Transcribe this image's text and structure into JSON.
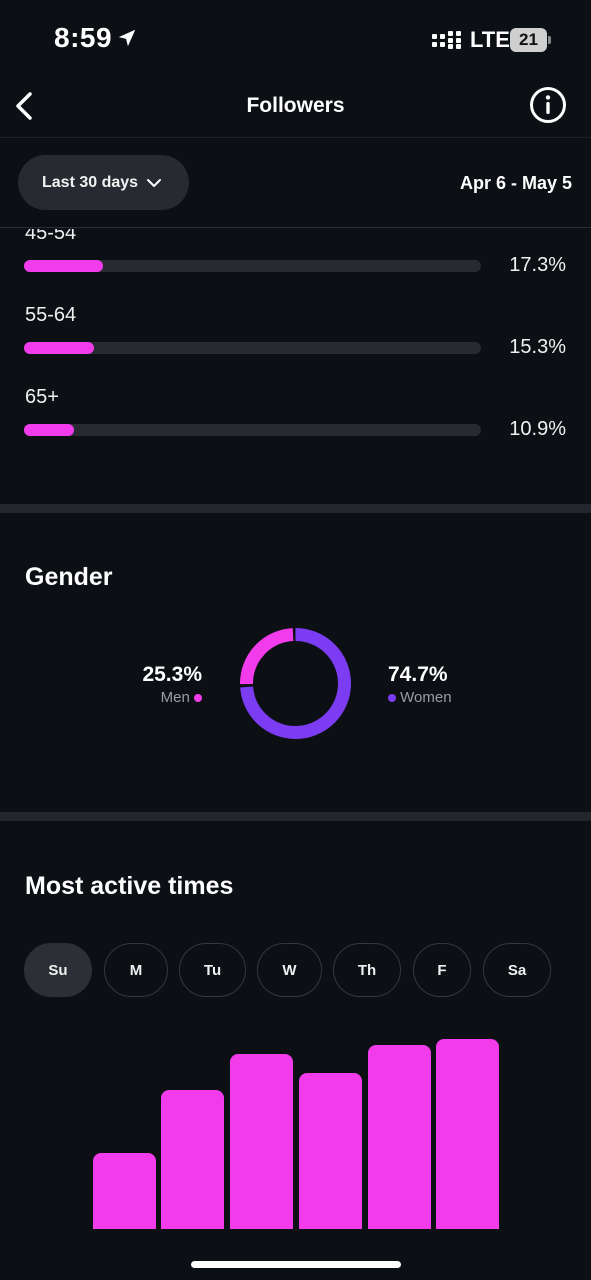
{
  "status_bar": {
    "time": "8:59",
    "network": "LTE",
    "battery": "21"
  },
  "header": {
    "title": "Followers"
  },
  "filter": {
    "range_label": "Last 30 days",
    "date_range": "Apr 6 - May 5"
  },
  "age": {
    "rows": [
      {
        "label": "45-54",
        "value": 17.3,
        "pct": "17.3%"
      },
      {
        "label": "55-64",
        "value": 15.3,
        "pct": "15.3%"
      },
      {
        "label": "65+",
        "value": 10.9,
        "pct": "10.9%"
      }
    ]
  },
  "gender": {
    "title": "Gender",
    "men": {
      "pct": "25.3%",
      "label": "Men",
      "value": 25.3,
      "color": "#f23ceb"
    },
    "women": {
      "pct": "74.7%",
      "label": "Women",
      "value": 74.7,
      "color": "#7c3cf2"
    }
  },
  "active_times": {
    "title": "Most active times",
    "days": [
      "Su",
      "M",
      "Tu",
      "W",
      "Th",
      "F",
      "Sa"
    ],
    "selected_day": "Su",
    "bar_color": "#f23ceb"
  },
  "chart_data": {
    "type": "bar",
    "values": [
      0,
      0.4,
      0.73,
      0.92,
      0.82,
      0.97,
      1.0
    ],
    "xlabel": "",
    "ylabel": ""
  }
}
